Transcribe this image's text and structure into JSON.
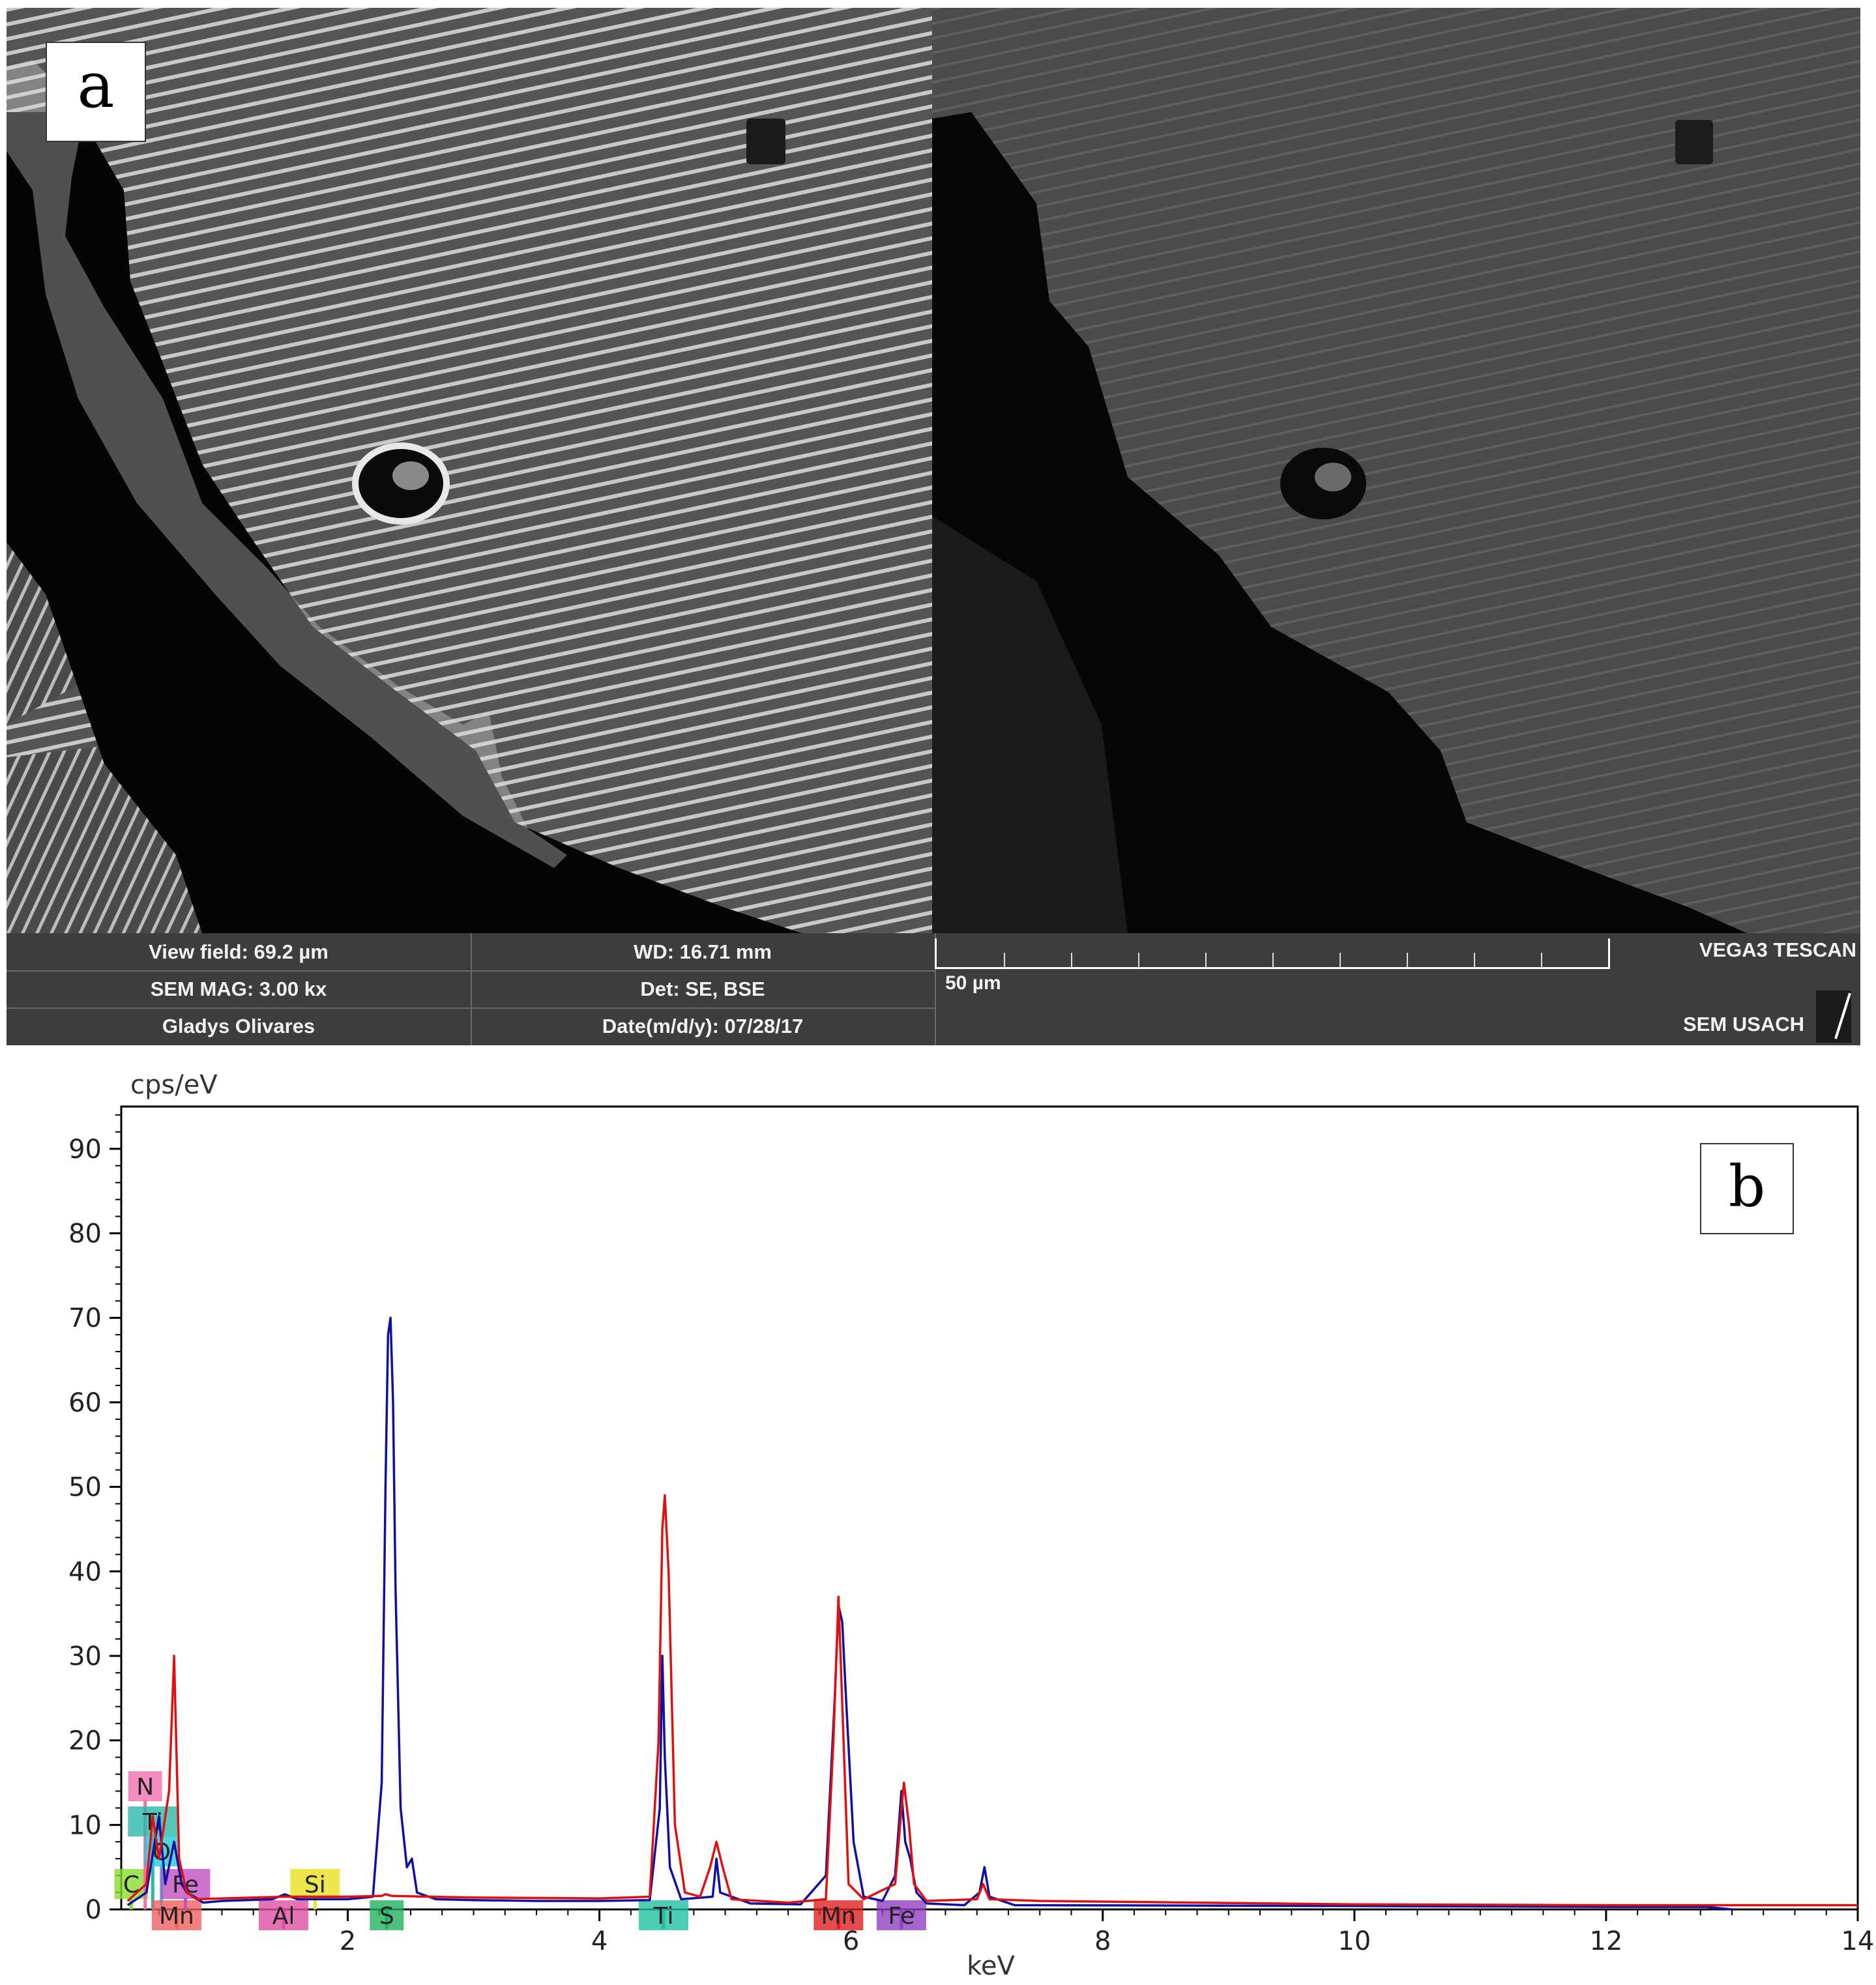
{
  "panel_a": {
    "letter": "a",
    "info": {
      "view_field": "View field: 69.2 µm",
      "sem_mag": "SEM MAG: 3.00 kx",
      "operator": "Gladys Olivares",
      "wd": "WD: 16.71 mm",
      "det": "Det: SE, BSE",
      "date": "Date(m/d/y): 07/28/17",
      "scale_bar": "50 µm",
      "instrument": "VEGA3 TESCAN",
      "lab": "SEM USACH"
    }
  },
  "panel_b": {
    "letter": "b"
  },
  "chart_data": {
    "type": "line",
    "ylabel": "cps/eV",
    "xlabel": "keV",
    "xlim": [
      0.2,
      14
    ],
    "ylim": [
      0,
      95
    ],
    "xticks": [
      2,
      4,
      6,
      8,
      10,
      12,
      14
    ],
    "yticks": [
      0,
      10,
      20,
      30,
      40,
      50,
      60,
      70,
      80,
      90
    ],
    "colors": {
      "blue": "#1010a0",
      "red": "#e01010"
    },
    "series": [
      {
        "color": "#1010a0",
        "points": [
          [
            0.25,
            0.5
          ],
          [
            0.4,
            2
          ],
          [
            0.5,
            11
          ],
          [
            0.55,
            3
          ],
          [
            0.62,
            8
          ],
          [
            0.68,
            3
          ],
          [
            0.72,
            2
          ],
          [
            0.78,
            1.5
          ],
          [
            0.85,
            0.8
          ],
          [
            1.0,
            1.0
          ],
          [
            1.4,
            1.2
          ],
          [
            1.5,
            1.8
          ],
          [
            1.6,
            1.2
          ],
          [
            2.0,
            1.2
          ],
          [
            2.2,
            1.5
          ],
          [
            2.27,
            15
          ],
          [
            2.3,
            50
          ],
          [
            2.32,
            68
          ],
          [
            2.34,
            70
          ],
          [
            2.36,
            60
          ],
          [
            2.38,
            38
          ],
          [
            2.42,
            12
          ],
          [
            2.47,
            5
          ],
          [
            2.51,
            6
          ],
          [
            2.55,
            2
          ],
          [
            2.7,
            1.2
          ],
          [
            3.0,
            1.1
          ],
          [
            3.5,
            1.0
          ],
          [
            4.0,
            1.0
          ],
          [
            4.4,
            1.1
          ],
          [
            4.48,
            12
          ],
          [
            4.5,
            30
          ],
          [
            4.52,
            18
          ],
          [
            4.56,
            5
          ],
          [
            4.65,
            1.2
          ],
          [
            4.9,
            1.5
          ],
          [
            4.93,
            6
          ],
          [
            4.96,
            2
          ],
          [
            5.2,
            0.7
          ],
          [
            5.6,
            0.6
          ],
          [
            5.8,
            4
          ],
          [
            5.87,
            25
          ],
          [
            5.9,
            36
          ],
          [
            5.93,
            34
          ],
          [
            5.96,
            25
          ],
          [
            6.02,
            8
          ],
          [
            6.1,
            1.5
          ],
          [
            6.25,
            1.0
          ],
          [
            6.35,
            4
          ],
          [
            6.4,
            14
          ],
          [
            6.43,
            8
          ],
          [
            6.47,
            6
          ],
          [
            6.52,
            2
          ],
          [
            6.6,
            0.7
          ],
          [
            6.9,
            0.5
          ],
          [
            7.02,
            2
          ],
          [
            7.06,
            5
          ],
          [
            7.1,
            1.5
          ],
          [
            7.3,
            0.5
          ],
          [
            10,
            0.4
          ],
          [
            12,
            0.3
          ],
          [
            12.8,
            0.3
          ],
          [
            13.0,
            0
          ]
        ]
      },
      {
        "color": "#e01010",
        "points": [
          [
            0.25,
            1
          ],
          [
            0.4,
            3
          ],
          [
            0.45,
            11
          ],
          [
            0.5,
            6
          ],
          [
            0.58,
            14
          ],
          [
            0.62,
            30
          ],
          [
            0.66,
            6
          ],
          [
            0.72,
            2
          ],
          [
            0.8,
            1.2
          ],
          [
            1.0,
            1.3
          ],
          [
            1.5,
            1.5
          ],
          [
            2.0,
            1.5
          ],
          [
            2.27,
            1.6
          ],
          [
            2.3,
            1.8
          ],
          [
            2.35,
            1.6
          ],
          [
            3.0,
            1.4
          ],
          [
            4.0,
            1.3
          ],
          [
            4.4,
            1.5
          ],
          [
            4.47,
            20
          ],
          [
            4.5,
            45
          ],
          [
            4.52,
            49
          ],
          [
            4.55,
            40
          ],
          [
            4.6,
            10
          ],
          [
            4.68,
            2
          ],
          [
            4.8,
            1.5
          ],
          [
            4.88,
            5
          ],
          [
            4.93,
            8
          ],
          [
            4.98,
            5
          ],
          [
            5.05,
            1.2
          ],
          [
            5.5,
            0.8
          ],
          [
            5.8,
            1.2
          ],
          [
            5.86,
            20
          ],
          [
            5.9,
            37
          ],
          [
            5.94,
            20
          ],
          [
            5.98,
            3
          ],
          [
            6.1,
            1.2
          ],
          [
            6.35,
            3
          ],
          [
            6.39,
            10
          ],
          [
            6.42,
            15
          ],
          [
            6.46,
            10
          ],
          [
            6.5,
            3
          ],
          [
            6.6,
            1.0
          ],
          [
            7.0,
            1.2
          ],
          [
            7.05,
            3
          ],
          [
            7.1,
            1.2
          ],
          [
            7.5,
            1.0
          ],
          [
            10,
            0.6
          ],
          [
            12,
            0.5
          ],
          [
            14,
            0.5
          ]
        ]
      }
    ],
    "element_markers": [
      {
        "label": "C",
        "x": 0.28,
        "color": "#88dd33",
        "stack": 4
      },
      {
        "label": "N",
        "x": 0.39,
        "color": "#f070b0",
        "stack": 1
      },
      {
        "label": "Ti",
        "x": 0.45,
        "color": "#2ab8a8",
        "stack": 2
      },
      {
        "label": "O",
        "x": 0.52,
        "color": "#25c8d8",
        "stack": 3
      },
      {
        "label": "Mn",
        "x": 0.64,
        "color": "#f06060",
        "stack": 5
      },
      {
        "label": "Fe",
        "x": 0.71,
        "color": "#c050c0",
        "stack": 4
      },
      {
        "label": "Al",
        "x": 1.49,
        "color": "#e050a0",
        "stack": 5
      },
      {
        "label": "Si",
        "x": 1.74,
        "color": "#e8e020",
        "stack": 4
      },
      {
        "label": "S",
        "x": 2.31,
        "color": "#20b060",
        "stack": 5
      },
      {
        "label": "Ti",
        "x": 4.51,
        "color": "#20c0a0",
        "stack": 5
      },
      {
        "label": "Mn",
        "x": 5.9,
        "color": "#e02020",
        "stack": 5
      },
      {
        "label": "Fe",
        "x": 6.4,
        "color": "#9040c0",
        "stack": 5
      }
    ]
  }
}
